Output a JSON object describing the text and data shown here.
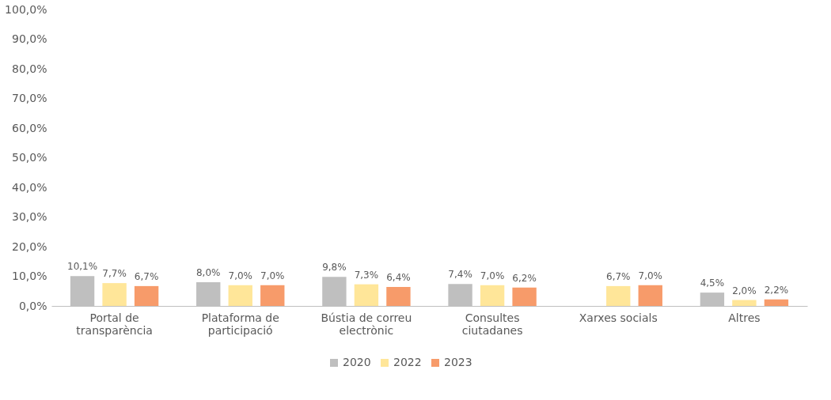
{
  "chart_data": {
    "type": "bar",
    "categories": [
      "Portal de transparència",
      "Plataforma de participació",
      "Bústia de correu electrònic",
      "Consultes ciutadanes",
      "Xarxes socials",
      "Altres"
    ],
    "series": [
      {
        "name": "2020",
        "color": "#bfbfbf",
        "values": [
          10.1,
          8.0,
          9.8,
          7.4,
          null,
          4.5
        ],
        "value_labels": [
          "10,1%",
          "8,0%",
          "9,8%",
          "7,4%",
          null,
          "4,5%"
        ]
      },
      {
        "name": "2022",
        "color": "#ffe699",
        "values": [
          7.7,
          7.0,
          7.3,
          7.0,
          6.7,
          2.0
        ],
        "value_labels": [
          "7,7%",
          "7,0%",
          "7,3%",
          "7,0%",
          "6,7%",
          "2,0%"
        ]
      },
      {
        "name": "2023",
        "color": "#f79b6a",
        "values": [
          6.7,
          7.0,
          6.4,
          6.2,
          7.0,
          2.2
        ],
        "value_labels": [
          "6,7%",
          "7,0%",
          "6,4%",
          "6,2%",
          "7,0%",
          "2,2%"
        ]
      }
    ],
    "ylim": [
      0,
      100
    ],
    "yticks": [
      {
        "value": 0,
        "label": "0,0%"
      },
      {
        "value": 10,
        "label": "10,0%"
      },
      {
        "value": 20,
        "label": "20,0%"
      },
      {
        "value": 30,
        "label": "30,0%"
      },
      {
        "value": 40,
        "label": "40,0%"
      },
      {
        "value": 50,
        "label": "50,0%"
      },
      {
        "value": 60,
        "label": "60,0%"
      },
      {
        "value": 70,
        "label": "70,0%"
      },
      {
        "value": 80,
        "label": "80,0%"
      },
      {
        "value": 90,
        "label": "90,0%"
      },
      {
        "value": 100,
        "label": "100,0%"
      }
    ],
    "grid": false,
    "legend": "bottom"
  }
}
